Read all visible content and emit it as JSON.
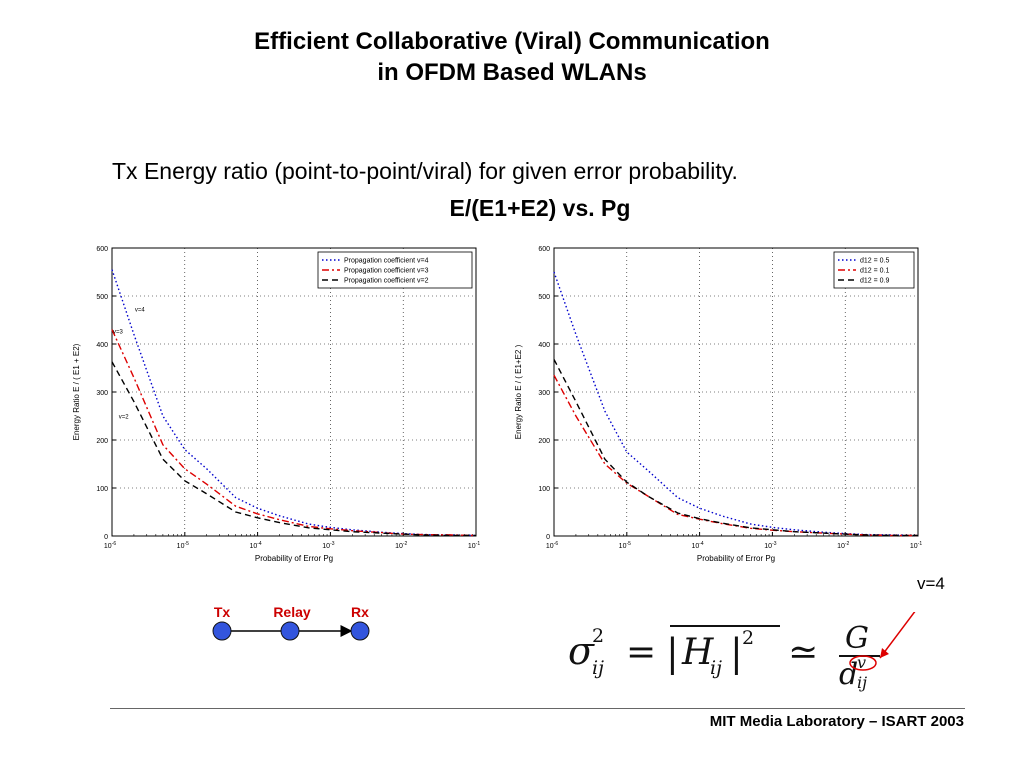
{
  "slide": {
    "title_line1": "Efficient Collaborative (Viral) Communication",
    "title_line2": "in OFDM Based WLANs",
    "subtitle": "Tx Energy ratio (point-to-point/viral) for given error probability.",
    "subtitle2": "E/(E1+E2) vs. Pg",
    "footer": "MIT Media Laboratory – ISART 2003"
  },
  "diagram": {
    "nodes": [
      "Tx",
      "Relay",
      "Rx"
    ],
    "node_color": "#3355dd",
    "label_color": "#cc0000"
  },
  "formula": {
    "annotation": "v=4",
    "arrow_color": "#dd0000"
  },
  "chart_data": [
    {
      "type": "line",
      "title": "",
      "xlabel": "Probability of Error Pg",
      "ylabel": "Energy Ratio   E / ( E1 + E2)",
      "x_scale": "log",
      "xlim": [
        1e-06,
        0.1
      ],
      "ylim": [
        0,
        600
      ],
      "x_tick_exponents": [
        "-6",
        "-5",
        "-4",
        "-3",
        "-2",
        "-1"
      ],
      "y_ticks": [
        "0",
        "100",
        "200",
        "300",
        "400",
        "500",
        "600"
      ],
      "grid": true,
      "legend": "top-right",
      "x": [
        1e-06,
        2e-06,
        5e-06,
        1e-05,
        2e-05,
        5e-05,
        0.0001,
        0.0002,
        0.0005,
        0.001,
        0.002,
        0.005,
        0.01,
        0.02,
        0.05,
        0.1
      ],
      "series": [
        {
          "name": "Propagation coefficient v=4",
          "color": "#0000cc",
          "dash": "dot",
          "values": [
            555,
            420,
            250,
            180,
            140,
            80,
            58,
            42,
            25,
            18,
            13,
            8,
            5,
            3,
            2,
            1
          ]
        },
        {
          "name": "Propagation coefficient v=3",
          "color": "#dd0000",
          "dash": "dashdot",
          "values": [
            430,
            330,
            190,
            140,
            108,
            62,
            46,
            34,
            20,
            15,
            11,
            7,
            4,
            3,
            2,
            1
          ]
        },
        {
          "name": "Propagation coefficient v=2",
          "color": "#000000",
          "dash": "dash",
          "values": [
            363,
            280,
            160,
            115,
            88,
            50,
            38,
            28,
            17,
            13,
            9,
            6,
            4,
            2,
            1,
            1
          ]
        }
      ],
      "annotations": [
        {
          "text": "v=4",
          "x": 2e-06,
          "y": 468
        },
        {
          "text": "v=3",
          "x": 1e-06,
          "y": 422
        },
        {
          "text": "v=2",
          "x": 1.2e-06,
          "y": 245
        }
      ]
    },
    {
      "type": "line",
      "title": "",
      "xlabel": "Probability of Error Pg",
      "ylabel": "Energy Ratio   E / ( E1+E2 )",
      "x_scale": "log",
      "xlim": [
        1e-06,
        0.1
      ],
      "ylim": [
        0,
        600
      ],
      "x_tick_exponents": [
        "-6",
        "-5",
        "-4",
        "-3",
        "-2",
        "-1"
      ],
      "y_ticks": [
        "0",
        "100",
        "200",
        "300",
        "400",
        "500",
        "600"
      ],
      "grid": true,
      "legend": "top-right",
      "x": [
        1e-06,
        2e-06,
        5e-06,
        1e-05,
        2e-05,
        5e-05,
        0.0001,
        0.0002,
        0.0005,
        0.001,
        0.002,
        0.005,
        0.01,
        0.02,
        0.05,
        0.1
      ],
      "series": [
        {
          "name": "d12 = 0.5",
          "color": "#0000cc",
          "dash": "dot",
          "values": [
            550,
            420,
            260,
            175,
            135,
            80,
            58,
            42,
            25,
            18,
            13,
            8,
            5,
            3,
            2,
            1
          ]
        },
        {
          "name": "d12 = 0.1",
          "color": "#dd0000",
          "dash": "dashdot",
          "values": [
            335,
            250,
            150,
            110,
            82,
            45,
            35,
            26,
            16,
            12,
            9,
            6,
            4,
            2,
            1,
            1
          ]
        },
        {
          "name": "d12 = 0.9",
          "color": "#000000",
          "dash": "dash",
          "values": [
            368,
            280,
            160,
            112,
            82,
            48,
            36,
            27,
            17,
            13,
            9,
            6,
            4,
            2,
            1,
            1
          ]
        }
      ],
      "annotations": []
    }
  ]
}
